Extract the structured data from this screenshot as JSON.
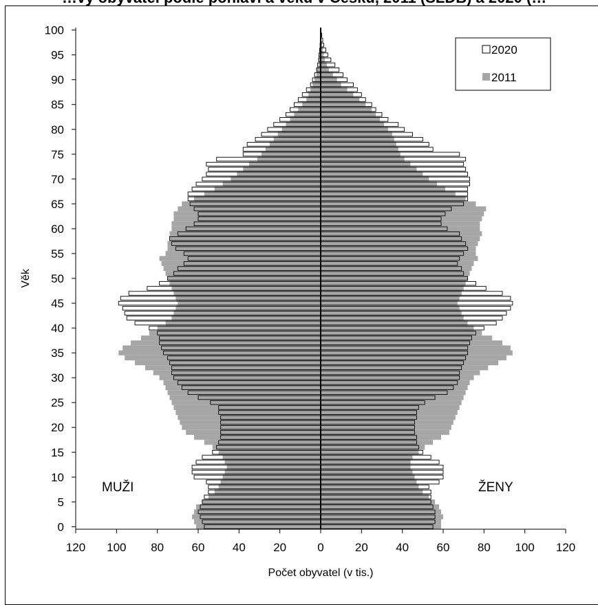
{
  "chart_data": {
    "type": "bar",
    "title": "…vy obyvatel podle pohlaví a věku v Česku, 2011 (SLDB) a 2020 (…",
    "xlabel": "Počet obyvatel (v tis.)",
    "ylabel": "Věk",
    "x_ticks": [
      "120",
      "100",
      "80",
      "60",
      "40",
      "20",
      "0",
      "20",
      "40",
      "60",
      "80",
      "100",
      "120"
    ],
    "y_ticks": [
      "0",
      "5",
      "10",
      "15",
      "20",
      "25",
      "30",
      "35",
      "40",
      "45",
      "50",
      "55",
      "60",
      "65",
      "70",
      "75",
      "80",
      "85",
      "90",
      "95",
      "100"
    ],
    "xlim": [
      -120,
      120
    ],
    "ylim": [
      0,
      100
    ],
    "grid": false,
    "legend_position": "top-right",
    "annotations": {
      "men": "MUŽI",
      "women": "ŽENY"
    },
    "legend": [
      {
        "label": "2020",
        "color": "#ffffff",
        "stroke": "#000000"
      },
      {
        "label": "2011",
        "color": "#a6a6a6",
        "stroke": "none"
      }
    ],
    "ages": [
      0,
      1,
      2,
      3,
      4,
      5,
      6,
      7,
      8,
      9,
      10,
      11,
      12,
      13,
      14,
      15,
      16,
      17,
      18,
      19,
      20,
      21,
      22,
      23,
      24,
      25,
      26,
      27,
      28,
      29,
      30,
      31,
      32,
      33,
      34,
      35,
      36,
      37,
      38,
      39,
      40,
      41,
      42,
      43,
      44,
      45,
      46,
      47,
      48,
      49,
      50,
      51,
      52,
      53,
      54,
      55,
      56,
      57,
      58,
      59,
      60,
      61,
      62,
      63,
      64,
      65,
      66,
      67,
      68,
      69,
      70,
      71,
      72,
      73,
      74,
      75,
      76,
      77,
      78,
      79,
      80,
      81,
      82,
      83,
      84,
      85,
      86,
      87,
      88,
      89,
      90,
      91,
      92,
      93,
      94,
      95,
      96,
      97,
      98,
      99,
      100
    ],
    "series": [
      {
        "name": "2011",
        "men": [
          61,
          62,
          63,
          62,
          61,
          58,
          55,
          52,
          50,
          49,
          48,
          47,
          46,
          47,
          48,
          50,
          53,
          57,
          62,
          66,
          68,
          69,
          70,
          71,
          72,
          73,
          74,
          75,
          76,
          77,
          79,
          82,
          86,
          91,
          96,
          99,
          97,
          93,
          88,
          84,
          80,
          76,
          73,
          72,
          71,
          70,
          71,
          72,
          73,
          74,
          75,
          76,
          77,
          78,
          79,
          76,
          75,
          75,
          74,
          74,
          73,
          73,
          72,
          72,
          70,
          68,
          62,
          57,
          52,
          48,
          44,
          41,
          38,
          35,
          31,
          29,
          27,
          25,
          23,
          21,
          19,
          17,
          15,
          13,
          11,
          9,
          7,
          6,
          5,
          4,
          3,
          2,
          2,
          1,
          1,
          1,
          0.5,
          0.3,
          0.2,
          0.1,
          0.1
        ],
        "women": [
          59,
          59,
          60,
          59,
          58,
          56,
          53,
          50,
          48,
          47,
          46,
          45,
          44,
          44,
          45,
          48,
          51,
          55,
          59,
          63,
          64,
          65,
          66,
          67,
          68,
          69,
          70,
          71,
          72,
          73,
          75,
          78,
          82,
          87,
          91,
          94,
          93,
          89,
          84,
          79,
          75,
          72,
          70,
          69,
          68,
          67,
          68,
          69,
          70,
          71,
          72,
          73,
          74,
          75,
          77,
          76,
          76,
          77,
          78,
          79,
          78,
          78,
          79,
          80,
          81,
          76,
          71,
          66,
          61,
          57,
          53,
          50,
          47,
          44,
          41,
          39,
          38,
          37,
          36,
          35,
          33,
          31,
          29,
          27,
          25,
          22,
          19,
          16,
          13,
          10,
          8,
          6,
          4,
          3,
          2,
          1.5,
          1,
          0.7,
          0.4,
          0.2,
          0.1
        ]
      },
      {
        "name": "2020",
        "men": [
          57,
          58,
          59,
          60,
          59,
          58,
          57,
          55,
          55,
          56,
          62,
          63,
          63,
          61,
          58,
          53,
          51,
          50,
          49,
          49,
          49,
          49,
          49,
          50,
          50,
          54,
          60,
          65,
          68,
          70,
          72,
          73,
          73,
          74,
          75,
          77,
          78,
          79,
          79,
          80,
          84,
          91,
          95,
          96,
          97,
          99,
          98,
          94,
          85,
          79,
          75,
          72,
          70,
          67,
          65,
          67,
          71,
          73,
          74,
          70,
          66,
          62,
          60,
          60,
          62,
          64,
          65,
          65,
          63,
          61,
          58,
          56,
          55,
          56,
          51,
          38,
          38,
          36,
          32,
          29,
          26,
          23,
          20,
          17,
          15,
          13,
          11,
          9,
          7,
          5,
          4,
          3,
          2,
          1.5,
          1,
          0.8,
          0.5,
          0.3,
          0.2,
          0.1,
          0.1
        ],
        "women": [
          55,
          56,
          56,
          56,
          55,
          54,
          54,
          54,
          53,
          58,
          60,
          60,
          60,
          58,
          54,
          50,
          48,
          47,
          47,
          46,
          46,
          46,
          47,
          47,
          48,
          51,
          56,
          62,
          65,
          67,
          68,
          68,
          69,
          70,
          71,
          72,
          72,
          73,
          74,
          76,
          80,
          86,
          89,
          91,
          93,
          94,
          93,
          89,
          81,
          76,
          72,
          70,
          69,
          67,
          68,
          70,
          72,
          71,
          69,
          68,
          62,
          59,
          59,
          61,
          64,
          70,
          72,
          72,
          72,
          73,
          73,
          72,
          71,
          70,
          71,
          68,
          55,
          53,
          50,
          45,
          41,
          38,
          33,
          30,
          27,
          25,
          22,
          20,
          18,
          16,
          13,
          11,
          9,
          7,
          5,
          3.5,
          2.5,
          1.5,
          1,
          0.5,
          0.2
        ]
      }
    ]
  }
}
